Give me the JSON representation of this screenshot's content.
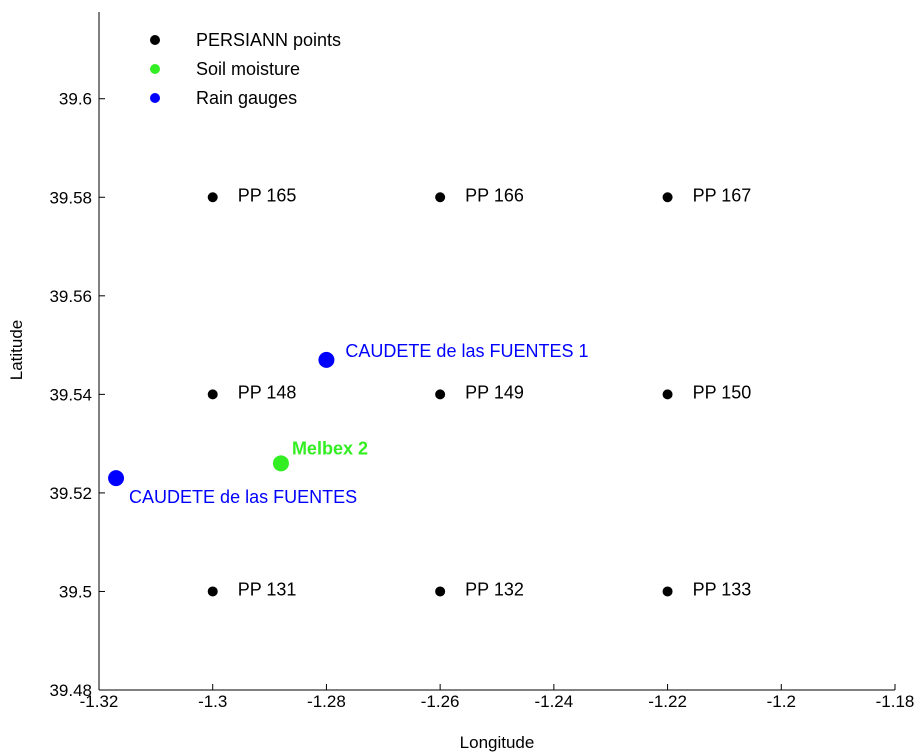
{
  "chart_data": {
    "type": "scatter",
    "xlabel": "Longitude",
    "ylabel": "Latitude",
    "xlim": [
      -1.32,
      -1.18
    ],
    "ylim": [
      39.48,
      39.62
    ],
    "xticks": [
      "-1.32",
      "-1.3",
      "-1.28",
      "-1.26",
      "-1.24",
      "-1.22",
      "-1.2",
      "-1.18"
    ],
    "yticks": [
      "39.48",
      "39.5",
      "39.52",
      "39.54",
      "39.56",
      "39.58",
      "39.6"
    ],
    "grid": false,
    "legend_position": "top-left",
    "series": [
      {
        "name": "PERSIANN points",
        "color": "#000000",
        "points": [
          {
            "x": -1.3,
            "y": 39.58,
            "label": "PP 165"
          },
          {
            "x": -1.26,
            "y": 39.58,
            "label": "PP 166"
          },
          {
            "x": -1.22,
            "y": 39.58,
            "label": "PP 167"
          },
          {
            "x": -1.3,
            "y": 39.54,
            "label": "PP 148"
          },
          {
            "x": -1.26,
            "y": 39.54,
            "label": "PP 149"
          },
          {
            "x": -1.22,
            "y": 39.54,
            "label": "PP 150"
          },
          {
            "x": -1.3,
            "y": 39.5,
            "label": "PP 131"
          },
          {
            "x": -1.26,
            "y": 39.5,
            "label": "PP 132"
          },
          {
            "x": -1.22,
            "y": 39.5,
            "label": "PP 133"
          }
        ]
      },
      {
        "name": "Soil moisture",
        "color": "#33ee22",
        "points": [
          {
            "x": -1.288,
            "y": 39.526,
            "label": "Melbex 2"
          }
        ]
      },
      {
        "name": "Rain gauges",
        "color": "#0000ff",
        "points": [
          {
            "x": -1.28,
            "y": 39.547,
            "label": "CAUDETE de las FUENTES 1"
          },
          {
            "x": -1.317,
            "y": 39.523,
            "label": "CAUDETE de las  FUENTES"
          }
        ]
      }
    ]
  }
}
